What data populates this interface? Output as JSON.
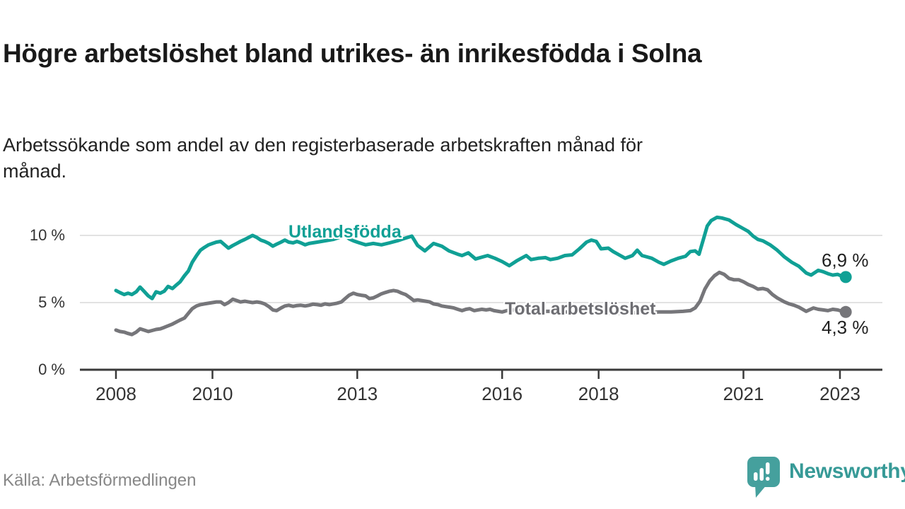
{
  "header": {
    "title": "Högre arbetslöshet bland utrikes- än inrikesfödda i Solna",
    "subtitle": "Arbetssökande som andel av den registerbaserade arbetskraften månad för månad."
  },
  "chart_data": {
    "type": "line",
    "unit": "%",
    "x_axis": {
      "ticks": [
        2008,
        2010,
        2013,
        2016,
        2018,
        2021,
        2023
      ],
      "range": [
        2008,
        2023.2
      ]
    },
    "y_axis": {
      "ticks": [
        {
          "value": 0,
          "label": "0 %"
        },
        {
          "value": 5,
          "label": "5 %"
        },
        {
          "value": 10,
          "label": "10 %"
        }
      ],
      "range": [
        0,
        11.6
      ],
      "gridlines": true
    },
    "series": [
      {
        "name": "Utlandsfödda",
        "color": "#10a095",
        "end_label": "6,9 %",
        "end_value": 6.9,
        "points": [
          [
            2008.0,
            5.9
          ],
          [
            2008.08,
            5.75
          ],
          [
            2008.17,
            5.6
          ],
          [
            2008.25,
            5.7
          ],
          [
            2008.33,
            5.6
          ],
          [
            2008.42,
            5.8
          ],
          [
            2008.5,
            6.15
          ],
          [
            2008.58,
            5.85
          ],
          [
            2008.67,
            5.5
          ],
          [
            2008.75,
            5.3
          ],
          [
            2008.83,
            5.8
          ],
          [
            2008.92,
            5.7
          ],
          [
            2009.0,
            5.85
          ],
          [
            2009.08,
            6.2
          ],
          [
            2009.17,
            6.05
          ],
          [
            2009.25,
            6.3
          ],
          [
            2009.33,
            6.55
          ],
          [
            2009.42,
            7.0
          ],
          [
            2009.5,
            7.35
          ],
          [
            2009.58,
            8.0
          ],
          [
            2009.67,
            8.5
          ],
          [
            2009.75,
            8.9
          ],
          [
            2009.83,
            9.1
          ],
          [
            2009.92,
            9.3
          ],
          [
            2010.0,
            9.4
          ],
          [
            2010.08,
            9.5
          ],
          [
            2010.17,
            9.55
          ],
          [
            2010.25,
            9.3
          ],
          [
            2010.33,
            9.05
          ],
          [
            2010.42,
            9.25
          ],
          [
            2010.5,
            9.4
          ],
          [
            2010.58,
            9.55
          ],
          [
            2010.67,
            9.7
          ],
          [
            2010.75,
            9.85
          ],
          [
            2010.83,
            10.0
          ],
          [
            2010.92,
            9.85
          ],
          [
            2011.0,
            9.65
          ],
          [
            2011.08,
            9.55
          ],
          [
            2011.17,
            9.4
          ],
          [
            2011.25,
            9.2
          ],
          [
            2011.33,
            9.35
          ],
          [
            2011.42,
            9.5
          ],
          [
            2011.5,
            9.65
          ],
          [
            2011.58,
            9.5
          ],
          [
            2011.67,
            9.45
          ],
          [
            2011.75,
            9.55
          ],
          [
            2011.83,
            9.45
          ],
          [
            2011.92,
            9.3
          ],
          [
            2012.0,
            9.4
          ],
          [
            2012.17,
            9.5
          ],
          [
            2012.33,
            9.6
          ],
          [
            2012.5,
            9.7
          ],
          [
            2012.67,
            9.9
          ],
          [
            2012.75,
            10.0
          ],
          [
            2012.83,
            9.75
          ],
          [
            2012.92,
            9.6
          ],
          [
            2013.0,
            9.5
          ],
          [
            2013.17,
            9.3
          ],
          [
            2013.33,
            9.4
          ],
          [
            2013.5,
            9.3
          ],
          [
            2013.67,
            9.45
          ],
          [
            2013.83,
            9.6
          ],
          [
            2014.0,
            9.8
          ],
          [
            2014.13,
            9.95
          ],
          [
            2014.25,
            9.25
          ],
          [
            2014.4,
            8.85
          ],
          [
            2014.58,
            9.4
          ],
          [
            2014.75,
            9.2
          ],
          [
            2014.9,
            8.85
          ],
          [
            2015.08,
            8.6
          ],
          [
            2015.17,
            8.5
          ],
          [
            2015.3,
            8.7
          ],
          [
            2015.45,
            8.25
          ],
          [
            2015.6,
            8.4
          ],
          [
            2015.7,
            8.5
          ],
          [
            2015.85,
            8.3
          ],
          [
            2016.0,
            8.05
          ],
          [
            2016.15,
            7.75
          ],
          [
            2016.3,
            8.1
          ],
          [
            2016.5,
            8.5
          ],
          [
            2016.6,
            8.2
          ],
          [
            2016.75,
            8.3
          ],
          [
            2016.9,
            8.35
          ],
          [
            2017.0,
            8.2
          ],
          [
            2017.15,
            8.3
          ],
          [
            2017.3,
            8.5
          ],
          [
            2017.45,
            8.55
          ],
          [
            2017.6,
            9.0
          ],
          [
            2017.75,
            9.5
          ],
          [
            2017.85,
            9.65
          ],
          [
            2017.95,
            9.55
          ],
          [
            2018.05,
            9.0
          ],
          [
            2018.2,
            9.05
          ],
          [
            2018.3,
            8.8
          ],
          [
            2018.45,
            8.5
          ],
          [
            2018.55,
            8.3
          ],
          [
            2018.7,
            8.5
          ],
          [
            2018.8,
            8.9
          ],
          [
            2018.9,
            8.5
          ],
          [
            2019.0,
            8.4
          ],
          [
            2019.1,
            8.3
          ],
          [
            2019.25,
            8.0
          ],
          [
            2019.35,
            7.85
          ],
          [
            2019.5,
            8.1
          ],
          [
            2019.65,
            8.3
          ],
          [
            2019.8,
            8.45
          ],
          [
            2019.9,
            8.8
          ],
          [
            2020.0,
            8.85
          ],
          [
            2020.08,
            8.6
          ],
          [
            2020.17,
            9.7
          ],
          [
            2020.25,
            10.7
          ],
          [
            2020.33,
            11.1
          ],
          [
            2020.45,
            11.35
          ],
          [
            2020.55,
            11.3
          ],
          [
            2020.7,
            11.15
          ],
          [
            2020.85,
            10.8
          ],
          [
            2021.0,
            10.5
          ],
          [
            2021.1,
            10.3
          ],
          [
            2021.2,
            9.95
          ],
          [
            2021.3,
            9.7
          ],
          [
            2021.4,
            9.6
          ],
          [
            2021.55,
            9.3
          ],
          [
            2021.7,
            8.9
          ],
          [
            2021.85,
            8.4
          ],
          [
            2022.0,
            8.0
          ],
          [
            2022.15,
            7.7
          ],
          [
            2022.3,
            7.2
          ],
          [
            2022.4,
            7.05
          ],
          [
            2022.55,
            7.4
          ],
          [
            2022.65,
            7.3
          ],
          [
            2022.75,
            7.15
          ],
          [
            2022.85,
            7.05
          ],
          [
            2022.95,
            7.1
          ],
          [
            2023.05,
            6.95
          ],
          [
            2023.12,
            6.9
          ]
        ]
      },
      {
        "name": "Total arbetslöshet",
        "color": "#76767a",
        "end_label": "4,3 %",
        "end_value": 4.3,
        "points": [
          [
            2008.0,
            2.95
          ],
          [
            2008.08,
            2.85
          ],
          [
            2008.17,
            2.8
          ],
          [
            2008.25,
            2.7
          ],
          [
            2008.33,
            2.62
          ],
          [
            2008.42,
            2.8
          ],
          [
            2008.5,
            3.05
          ],
          [
            2008.58,
            2.95
          ],
          [
            2008.67,
            2.85
          ],
          [
            2008.75,
            2.92
          ],
          [
            2008.83,
            3.0
          ],
          [
            2008.92,
            3.05
          ],
          [
            2009.0,
            3.15
          ],
          [
            2009.17,
            3.4
          ],
          [
            2009.33,
            3.7
          ],
          [
            2009.42,
            3.85
          ],
          [
            2009.5,
            4.2
          ],
          [
            2009.58,
            4.55
          ],
          [
            2009.67,
            4.75
          ],
          [
            2009.75,
            4.85
          ],
          [
            2009.83,
            4.9
          ],
          [
            2009.92,
            4.95
          ],
          [
            2010.0,
            5.0
          ],
          [
            2010.08,
            5.05
          ],
          [
            2010.17,
            5.05
          ],
          [
            2010.25,
            4.85
          ],
          [
            2010.33,
            5.0
          ],
          [
            2010.42,
            5.25
          ],
          [
            2010.5,
            5.15
          ],
          [
            2010.58,
            5.05
          ],
          [
            2010.67,
            5.1
          ],
          [
            2010.75,
            5.05
          ],
          [
            2010.83,
            5.0
          ],
          [
            2010.92,
            5.05
          ],
          [
            2011.0,
            5.0
          ],
          [
            2011.08,
            4.9
          ],
          [
            2011.17,
            4.7
          ],
          [
            2011.25,
            4.45
          ],
          [
            2011.33,
            4.4
          ],
          [
            2011.42,
            4.6
          ],
          [
            2011.5,
            4.75
          ],
          [
            2011.58,
            4.8
          ],
          [
            2011.67,
            4.72
          ],
          [
            2011.75,
            4.78
          ],
          [
            2011.83,
            4.8
          ],
          [
            2011.92,
            4.75
          ],
          [
            2012.0,
            4.8
          ],
          [
            2012.08,
            4.88
          ],
          [
            2012.17,
            4.85
          ],
          [
            2012.25,
            4.8
          ],
          [
            2012.33,
            4.9
          ],
          [
            2012.42,
            4.85
          ],
          [
            2012.5,
            4.9
          ],
          [
            2012.58,
            4.95
          ],
          [
            2012.67,
            5.05
          ],
          [
            2012.75,
            5.3
          ],
          [
            2012.83,
            5.55
          ],
          [
            2012.92,
            5.7
          ],
          [
            2013.0,
            5.6
          ],
          [
            2013.08,
            5.55
          ],
          [
            2013.17,
            5.5
          ],
          [
            2013.25,
            5.3
          ],
          [
            2013.33,
            5.35
          ],
          [
            2013.42,
            5.5
          ],
          [
            2013.5,
            5.65
          ],
          [
            2013.58,
            5.75
          ],
          [
            2013.67,
            5.85
          ],
          [
            2013.75,
            5.9
          ],
          [
            2013.83,
            5.85
          ],
          [
            2013.92,
            5.7
          ],
          [
            2014.0,
            5.6
          ],
          [
            2014.08,
            5.4
          ],
          [
            2014.17,
            5.15
          ],
          [
            2014.25,
            5.2
          ],
          [
            2014.33,
            5.15
          ],
          [
            2014.42,
            5.1
          ],
          [
            2014.5,
            5.05
          ],
          [
            2014.58,
            4.9
          ],
          [
            2014.67,
            4.85
          ],
          [
            2014.75,
            4.75
          ],
          [
            2014.83,
            4.7
          ],
          [
            2014.92,
            4.65
          ],
          [
            2015.0,
            4.6
          ],
          [
            2015.08,
            4.5
          ],
          [
            2015.17,
            4.4
          ],
          [
            2015.25,
            4.5
          ],
          [
            2015.33,
            4.55
          ],
          [
            2015.42,
            4.4
          ],
          [
            2015.5,
            4.45
          ],
          [
            2015.58,
            4.5
          ],
          [
            2015.67,
            4.45
          ],
          [
            2015.75,
            4.5
          ],
          [
            2015.83,
            4.4
          ],
          [
            2015.92,
            4.35
          ],
          [
            2016.0,
            4.3
          ],
          [
            2016.1,
            4.4
          ],
          [
            2016.25,
            4.45
          ],
          [
            2016.5,
            4.4
          ],
          [
            2016.75,
            4.35
          ],
          [
            2017.0,
            4.35
          ],
          [
            2017.25,
            4.3
          ],
          [
            2017.5,
            4.3
          ],
          [
            2017.75,
            4.25
          ],
          [
            2018.0,
            4.25
          ],
          [
            2018.25,
            4.2
          ],
          [
            2018.5,
            4.2
          ],
          [
            2018.75,
            4.25
          ],
          [
            2019.0,
            4.25
          ],
          [
            2019.25,
            4.3
          ],
          [
            2019.5,
            4.3
          ],
          [
            2019.75,
            4.35
          ],
          [
            2019.9,
            4.4
          ],
          [
            2020.0,
            4.6
          ],
          [
            2020.1,
            5.1
          ],
          [
            2020.2,
            6.0
          ],
          [
            2020.3,
            6.6
          ],
          [
            2020.4,
            7.0
          ],
          [
            2020.5,
            7.25
          ],
          [
            2020.6,
            7.1
          ],
          [
            2020.7,
            6.8
          ],
          [
            2020.8,
            6.7
          ],
          [
            2020.9,
            6.7
          ],
          [
            2021.0,
            6.55
          ],
          [
            2021.1,
            6.35
          ],
          [
            2021.2,
            6.2
          ],
          [
            2021.3,
            6.0
          ],
          [
            2021.4,
            6.05
          ],
          [
            2021.5,
            5.95
          ],
          [
            2021.6,
            5.6
          ],
          [
            2021.7,
            5.35
          ],
          [
            2021.85,
            5.05
          ],
          [
            2021.95,
            4.9
          ],
          [
            2022.05,
            4.8
          ],
          [
            2022.15,
            4.65
          ],
          [
            2022.3,
            4.35
          ],
          [
            2022.45,
            4.6
          ],
          [
            2022.55,
            4.5
          ],
          [
            2022.65,
            4.45
          ],
          [
            2022.75,
            4.4
          ],
          [
            2022.85,
            4.5
          ],
          [
            2022.95,
            4.45
          ],
          [
            2023.05,
            4.35
          ],
          [
            2023.12,
            4.3
          ]
        ]
      }
    ],
    "colors": {
      "grid": "#d8d8d8",
      "axis": "#3a3a3a",
      "tick_text": "#333333"
    }
  },
  "footer": {
    "source": "Källa: Arbetsförmedlingen",
    "brand": "Newsworthy",
    "brand_color": "#379a97"
  }
}
